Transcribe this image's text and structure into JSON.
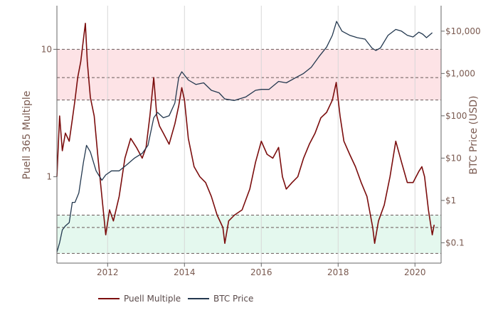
{
  "chart_data": {
    "type": "line",
    "title": "",
    "colors": {
      "puell": "#7b0d0d",
      "btc": "#23384f",
      "upper_band": "#fde3e6",
      "lower_band": "#e4f8ee",
      "band_line": "#6a5a5a",
      "axis_text": "#7a5a50",
      "grid": "#d8d8d8"
    },
    "x_axis": {
      "range": [
        2010.68,
        2020.68
      ],
      "ticks": [
        2012,
        2014,
        2016,
        2018,
        2020
      ],
      "tick_labels": [
        "2012",
        "2014",
        "2016",
        "2018",
        "2020"
      ]
    },
    "y_left": {
      "label": "Puell 365 Multiple",
      "scale": "log",
      "range": [
        0.21,
        22
      ],
      "ticks": [
        1,
        10
      ],
      "tick_labels": [
        "1",
        "10"
      ]
    },
    "y_right": {
      "label": "BTC Price (USD)",
      "scale": "log",
      "range": [
        0.033,
        40000
      ],
      "ticks": [
        0.1,
        1,
        10,
        100,
        1000,
        10000
      ],
      "tick_labels": [
        "$0.1",
        "$1",
        "$10",
        "$100",
        "$1,000",
        "$10,000"
      ]
    },
    "bands": {
      "upper": {
        "from": 4,
        "to": 10,
        "mid": 6
      },
      "lower": {
        "from": 0.25,
        "to": 0.5,
        "mid": 0.4
      }
    },
    "series": [
      {
        "name": "Puell Multiple",
        "axis": "left",
        "x": [
          2010.68,
          2010.75,
          2010.82,
          2010.9,
          2011.0,
          2011.08,
          2011.15,
          2011.22,
          2011.3,
          2011.37,
          2011.42,
          2011.47,
          2011.55,
          2011.65,
          2011.75,
          2011.85,
          2011.95,
          2012.05,
          2012.15,
          2012.3,
          2012.45,
          2012.6,
          2012.75,
          2012.9,
          2013.0,
          2013.1,
          2013.2,
          2013.28,
          2013.35,
          2013.45,
          2013.6,
          2013.75,
          2013.85,
          2013.93,
          2014.0,
          2014.1,
          2014.25,
          2014.4,
          2014.55,
          2014.7,
          2014.85,
          2015.0,
          2015.05,
          2015.15,
          2015.3,
          2015.5,
          2015.7,
          2015.85,
          2016.0,
          2016.15,
          2016.3,
          2016.45,
          2016.55,
          2016.65,
          2016.8,
          2016.95,
          2017.1,
          2017.25,
          2017.4,
          2017.55,
          2017.7,
          2017.85,
          2017.95,
          2018.05,
          2018.15,
          2018.3,
          2018.45,
          2018.6,
          2018.75,
          2018.9,
          2018.95,
          2019.05,
          2019.2,
          2019.35,
          2019.5,
          2019.65,
          2019.8,
          2019.95,
          2020.1,
          2020.18,
          2020.25,
          2020.35,
          2020.45,
          2020.5
        ],
        "values": [
          1.0,
          3.0,
          1.6,
          2.2,
          1.9,
          2.8,
          4.0,
          6.0,
          8.0,
          12.0,
          16.0,
          8.0,
          4.2,
          3.0,
          1.4,
          0.7,
          0.35,
          0.55,
          0.45,
          0.7,
          1.4,
          2.0,
          1.7,
          1.4,
          1.7,
          3.0,
          6.0,
          3.0,
          2.5,
          2.2,
          1.8,
          2.6,
          3.6,
          5.0,
          4.0,
          2.0,
          1.2,
          1.0,
          0.9,
          0.7,
          0.5,
          0.4,
          0.3,
          0.45,
          0.5,
          0.55,
          0.8,
          1.3,
          1.9,
          1.5,
          1.4,
          1.7,
          1.0,
          0.8,
          0.9,
          1.0,
          1.4,
          1.8,
          2.2,
          2.9,
          3.2,
          4.0,
          5.5,
          3.0,
          1.9,
          1.5,
          1.2,
          0.9,
          0.7,
          0.4,
          0.3,
          0.45,
          0.6,
          1.0,
          1.9,
          1.3,
          0.9,
          0.9,
          1.1,
          1.2,
          1.0,
          0.55,
          0.35,
          0.42
        ]
      },
      {
        "name": "BTC Price",
        "axis": "right",
        "x": [
          2010.68,
          2010.75,
          2010.82,
          2010.9,
          2011.0,
          2011.08,
          2011.15,
          2011.25,
          2011.37,
          2011.45,
          2011.55,
          2011.7,
          2011.85,
          2011.95,
          2012.1,
          2012.3,
          2012.5,
          2012.7,
          2012.9,
          2013.05,
          2013.2,
          2013.3,
          2013.45,
          2013.6,
          2013.75,
          2013.85,
          2013.93,
          2014.1,
          2014.3,
          2014.5,
          2014.7,
          2014.9,
          2015.05,
          2015.3,
          2015.6,
          2015.85,
          2016.0,
          2016.2,
          2016.45,
          2016.65,
          2016.9,
          2017.1,
          2017.3,
          2017.5,
          2017.7,
          2017.85,
          2017.96,
          2018.1,
          2018.3,
          2018.5,
          2018.7,
          2018.88,
          2018.98,
          2019.1,
          2019.3,
          2019.5,
          2019.65,
          2019.8,
          2019.95,
          2020.1,
          2020.2,
          2020.3,
          2020.45
        ],
        "values": [
          0.06,
          0.1,
          0.2,
          0.25,
          0.3,
          0.9,
          0.9,
          1.5,
          8.0,
          20.0,
          14.0,
          5.0,
          3.0,
          4.0,
          5.0,
          5.0,
          7.0,
          10.0,
          13.0,
          20.0,
          90.0,
          120.0,
          90.0,
          100.0,
          200.0,
          800.0,
          1100.0,
          700.0,
          550.0,
          600.0,
          400.0,
          350.0,
          250.0,
          230.0,
          280.0,
          400.0,
          420.0,
          420.0,
          650.0,
          600.0,
          800.0,
          1000.0,
          1400.0,
          2500.0,
          4200.0,
          8000.0,
          17000.0,
          10000.0,
          8000.0,
          7000.0,
          6500.0,
          4000.0,
          3500.0,
          4000.0,
          8000.0,
          11000.0,
          10000.0,
          8000.0,
          7300.0,
          9500.0,
          8500.0,
          7000.0,
          9200.0
        ]
      }
    ],
    "legend": {
      "placement": "bottom-center",
      "entries": [
        "Puell Multiple",
        "BTC Price"
      ]
    }
  }
}
